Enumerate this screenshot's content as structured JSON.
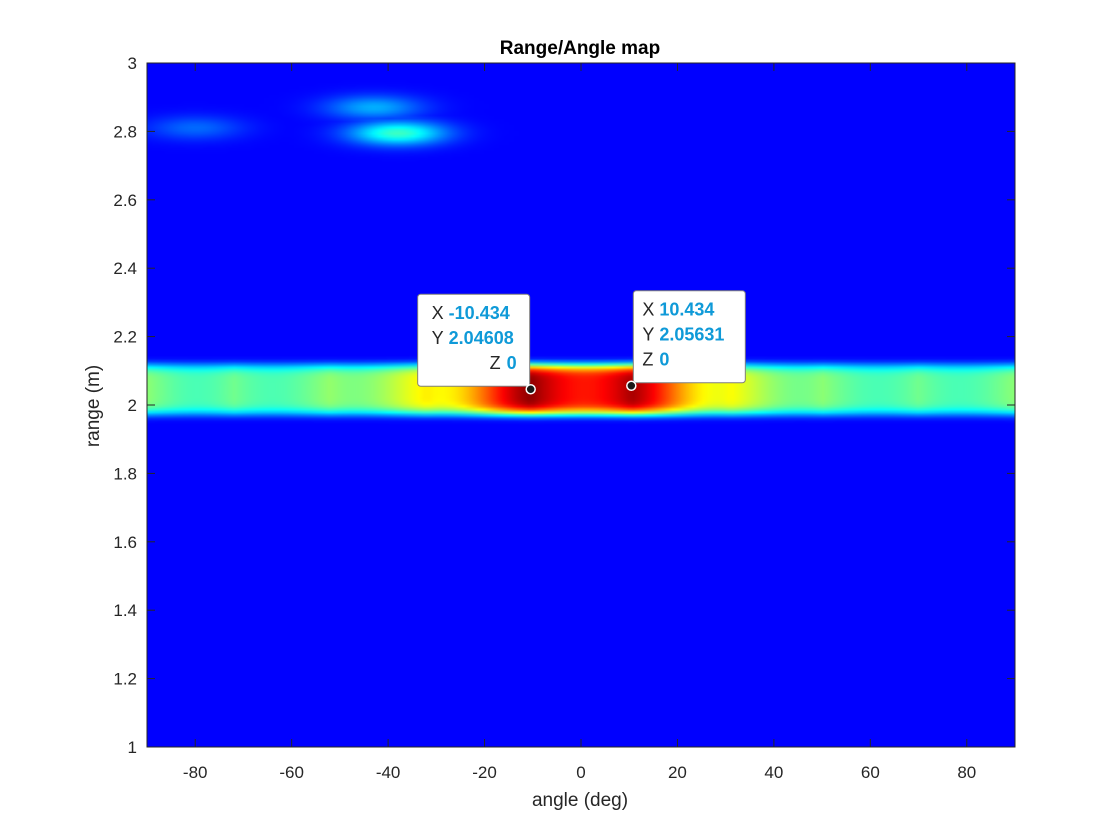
{
  "chart_data": {
    "type": "heatmap",
    "title": "Range/Angle map",
    "xlabel": "angle (deg)",
    "ylabel": "range (m)",
    "xlim": [
      -90,
      90
    ],
    "ylim": [
      1,
      3
    ],
    "x_ticks": [
      -80,
      -60,
      -40,
      -20,
      0,
      20,
      40,
      60,
      80
    ],
    "y_ticks": [
      1,
      1.2,
      1.4,
      1.6,
      1.8,
      2,
      2.2,
      2.4,
      2.6,
      2.8,
      3
    ],
    "colormap": "jet",
    "grid": false,
    "background_level": 0,
    "band": {
      "range_center": 2.045,
      "range_halfwidth": 0.07,
      "lobes": [
        {
          "angle": -90,
          "level": 0.45
        },
        {
          "angle": -72,
          "level": 0.42
        },
        {
          "angle": -52,
          "level": 0.46
        },
        {
          "angle": -32,
          "level": 0.6
        },
        {
          "angle": -10.434,
          "level": 1.0
        },
        {
          "angle": 10.434,
          "level": 0.97
        },
        {
          "angle": 31,
          "level": 0.58
        },
        {
          "angle": 50,
          "level": 0.45
        },
        {
          "angle": 70,
          "level": 0.42
        },
        {
          "angle": 90,
          "level": 0.45
        }
      ]
    },
    "blobs": [
      {
        "angle": -38,
        "range": 2.795,
        "level": 0.36
      },
      {
        "angle": -43,
        "range": 2.87,
        "level": 0.2
      },
      {
        "angle": -80,
        "range": 2.81,
        "level": 0.12
      }
    ],
    "datatips": [
      {
        "x_key": "X",
        "x": "-10.434",
        "y_key": "Y",
        "y": "2.04608",
        "z_key": "Z",
        "z": "0",
        "angle": -10.434,
        "range": 2.04608
      },
      {
        "x_key": "X",
        "x": "10.434",
        "y_key": "Y",
        "y": "2.05631",
        "z_key": "Z",
        "z": "0",
        "angle": 10.434,
        "range": 2.05631
      }
    ]
  }
}
